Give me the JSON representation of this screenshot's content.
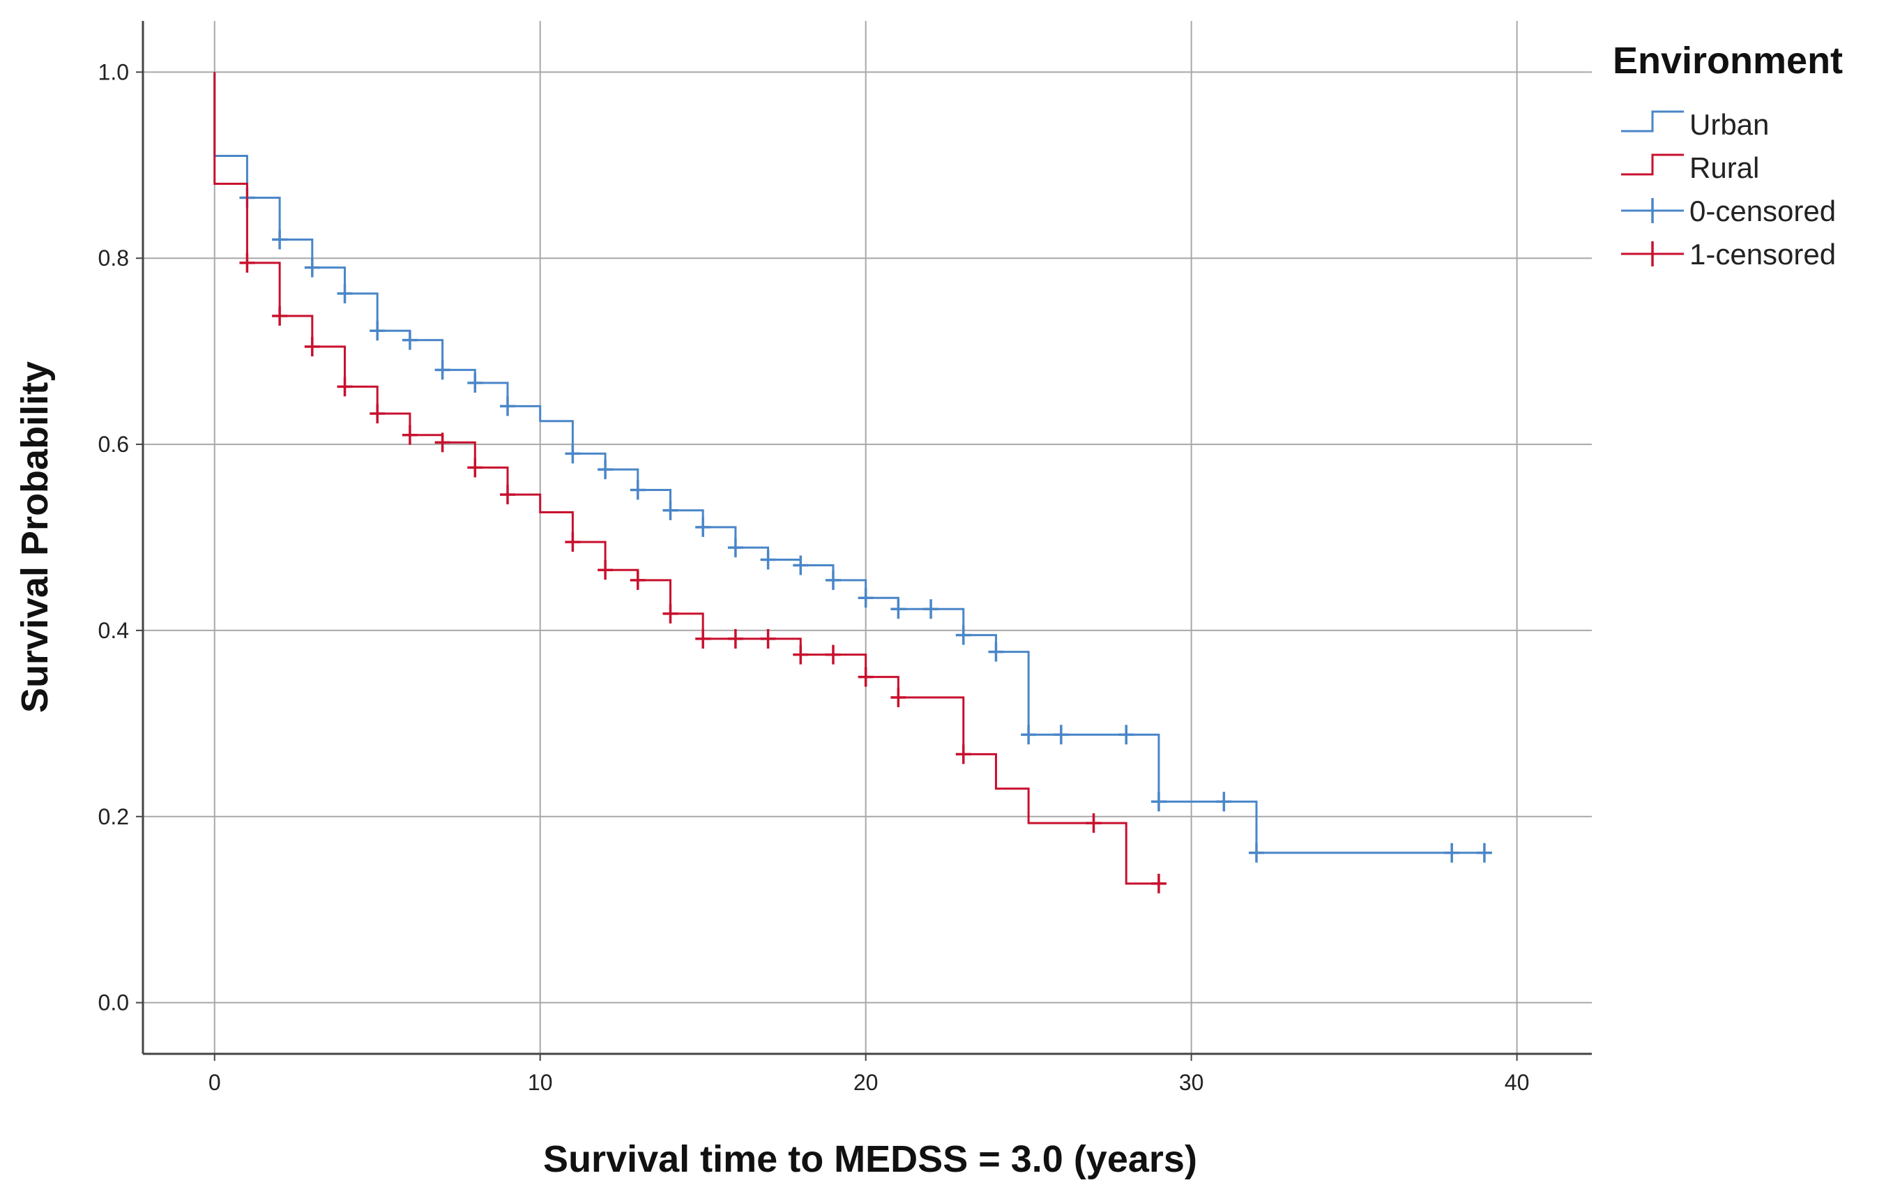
{
  "chart_data": {
    "type": "line",
    "subtype": "kaplan-meier-step",
    "title": "",
    "xlabel": "Survival time to MEDSS = 3.0 (years)",
    "ylabel": "Survival Probability",
    "xlim": [
      -2.2,
      42.3
    ],
    "ylim": [
      -0.055,
      1.055
    ],
    "xticks": [
      0,
      10,
      20,
      30,
      40
    ],
    "yticks": [
      0.0,
      0.2,
      0.4,
      0.6,
      0.8,
      1.0
    ],
    "xtick_labels": [
      "0",
      "10",
      "20",
      "30",
      "40"
    ],
    "ytick_labels": [
      "0.0",
      "0.2",
      "0.4",
      "0.6",
      "0.8",
      "1.0"
    ],
    "grid": true,
    "legend": {
      "title": "Environment",
      "placement": "right",
      "entries": [
        {
          "label": "Urban",
          "kind": "line",
          "color": "#4a86c8"
        },
        {
          "label": "Rural",
          "kind": "line",
          "color": "#c8102e"
        },
        {
          "label": "0-censored",
          "kind": "censor",
          "color": "#4a86c8"
        },
        {
          "label": "1-censored",
          "kind": "censor",
          "color": "#c8102e"
        }
      ]
    },
    "series": [
      {
        "name": "Urban",
        "color": "#4a86c8",
        "steps": [
          [
            0,
            1.0
          ],
          [
            0,
            0.91
          ],
          [
            1,
            0.865
          ],
          [
            2,
            0.82
          ],
          [
            3,
            0.79
          ],
          [
            4,
            0.762
          ],
          [
            5,
            0.722
          ],
          [
            6,
            0.712
          ],
          [
            7,
            0.68
          ],
          [
            8,
            0.666
          ],
          [
            9,
            0.641
          ],
          [
            10,
            0.625
          ],
          [
            11,
            0.59
          ],
          [
            12,
            0.573
          ],
          [
            13,
            0.551
          ],
          [
            14,
            0.529
          ],
          [
            15,
            0.511
          ],
          [
            16,
            0.489
          ],
          [
            17,
            0.476
          ],
          [
            18,
            0.47
          ],
          [
            19,
            0.454
          ],
          [
            20,
            0.435
          ],
          [
            21,
            0.423
          ],
          [
            22,
            0.423
          ],
          [
            23,
            0.395
          ],
          [
            24,
            0.377
          ],
          [
            25,
            0.288
          ],
          [
            29,
            0.216
          ],
          [
            32,
            0.161
          ],
          [
            39.1,
            0.161
          ]
        ],
        "censored": [
          [
            1,
            0.865
          ],
          [
            2,
            0.82
          ],
          [
            3,
            0.79
          ],
          [
            4,
            0.762
          ],
          [
            5,
            0.722
          ],
          [
            6,
            0.712
          ],
          [
            7,
            0.68
          ],
          [
            8,
            0.666
          ],
          [
            9,
            0.641
          ],
          [
            11,
            0.59
          ],
          [
            12,
            0.573
          ],
          [
            13,
            0.551
          ],
          [
            14,
            0.529
          ],
          [
            15,
            0.511
          ],
          [
            16,
            0.489
          ],
          [
            17,
            0.476
          ],
          [
            18,
            0.47
          ],
          [
            19,
            0.454
          ],
          [
            20,
            0.435
          ],
          [
            21,
            0.423
          ],
          [
            22,
            0.423
          ],
          [
            23,
            0.395
          ],
          [
            24,
            0.377
          ],
          [
            25,
            0.288
          ],
          [
            26,
            0.288
          ],
          [
            28,
            0.288
          ],
          [
            29,
            0.216
          ],
          [
            31,
            0.216
          ],
          [
            32,
            0.161
          ],
          [
            38,
            0.161
          ],
          [
            39,
            0.161
          ]
        ]
      },
      {
        "name": "Rural",
        "color": "#c8102e",
        "steps": [
          [
            0,
            1.0
          ],
          [
            0,
            0.88
          ],
          [
            1,
            0.795
          ],
          [
            2,
            0.738
          ],
          [
            3,
            0.705
          ],
          [
            4,
            0.662
          ],
          [
            5,
            0.633
          ],
          [
            6,
            0.61
          ],
          [
            7,
            0.602
          ],
          [
            8,
            0.575
          ],
          [
            9,
            0.546
          ],
          [
            10,
            0.527
          ],
          [
            11,
            0.495
          ],
          [
            12,
            0.465
          ],
          [
            13,
            0.454
          ],
          [
            14,
            0.418
          ],
          [
            15,
            0.391
          ],
          [
            18,
            0.374
          ],
          [
            20,
            0.35
          ],
          [
            21,
            0.328
          ],
          [
            23,
            0.267
          ],
          [
            24,
            0.23
          ],
          [
            25,
            0.193
          ],
          [
            28,
            0.128
          ],
          [
            29.2,
            0.128
          ]
        ],
        "censored": [
          [
            1,
            0.795
          ],
          [
            2,
            0.738
          ],
          [
            3,
            0.705
          ],
          [
            4,
            0.662
          ],
          [
            5,
            0.633
          ],
          [
            6,
            0.61
          ],
          [
            7,
            0.602
          ],
          [
            8,
            0.575
          ],
          [
            9,
            0.546
          ],
          [
            11,
            0.495
          ],
          [
            12,
            0.465
          ],
          [
            13,
            0.454
          ],
          [
            14,
            0.418
          ],
          [
            15,
            0.391
          ],
          [
            16,
            0.391
          ],
          [
            17,
            0.391
          ],
          [
            18,
            0.374
          ],
          [
            19,
            0.374
          ],
          [
            20,
            0.35
          ],
          [
            21,
            0.328
          ],
          [
            23,
            0.267
          ],
          [
            27,
            0.193
          ],
          [
            29,
            0.128
          ]
        ]
      }
    ]
  }
}
